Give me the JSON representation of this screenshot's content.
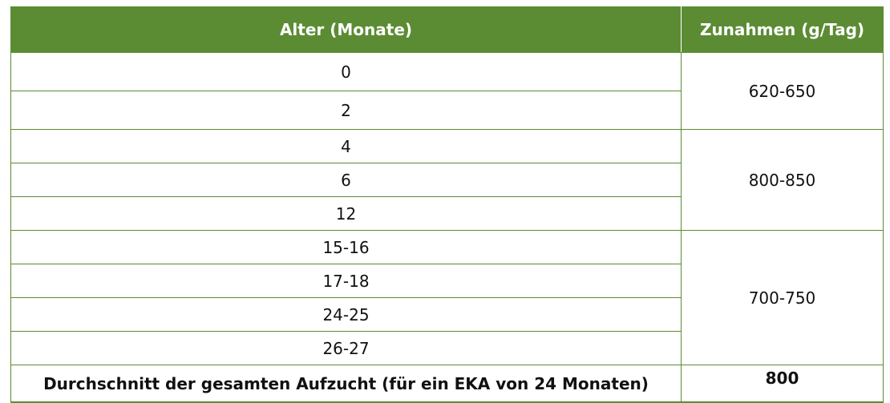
{
  "header": {
    "col1": "Alter (Monate)",
    "col2": "Zunahmen (g/Tag)"
  },
  "groups": [
    {
      "ages": [
        "0",
        "2"
      ],
      "gain": "620-650"
    },
    {
      "ages": [
        "4",
        "6",
        "12"
      ],
      "gain": "800-850"
    },
    {
      "ages": [
        "15-16",
        "17-18",
        "24-25",
        "26-27"
      ],
      "gain": "700-750"
    }
  ],
  "footer": {
    "label": "Durchschnitt der gesamten Aufzucht (für ein EKA von 24 Monaten)",
    "value": "800"
  },
  "colors": {
    "header_bg": "#5b8c33",
    "border": "#5b8c33"
  }
}
